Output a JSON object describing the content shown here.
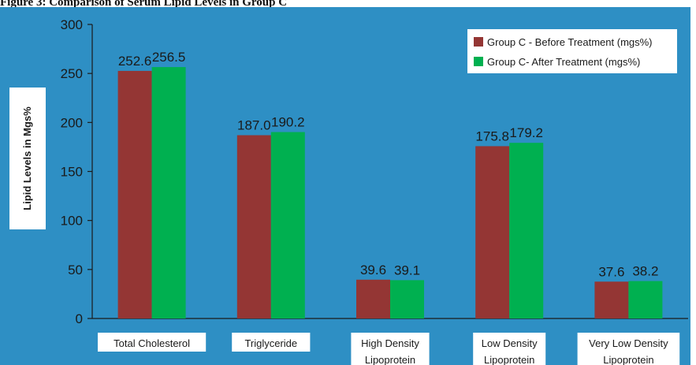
{
  "heading": "Figure 3: Comparison of Serum Lipid Levels in Group C",
  "colors": {
    "background": "#2e8fc4",
    "before": "#943634",
    "after": "#00b050",
    "ylabel_box": "#ffffff"
  },
  "chart_data": {
    "type": "bar",
    "categories": [
      [
        "Total Cholesterol"
      ],
      [
        "Triglyceride"
      ],
      [
        "High Density",
        "Lipoprotein"
      ],
      [
        "Low Density",
        "Lipoprotein"
      ],
      [
        "Very Low Density",
        "Lipoprotein"
      ]
    ],
    "series": [
      {
        "name": "Group C - Before Treatment (mgs%)",
        "values": [
          252.6,
          187.0,
          39.6,
          175.8,
          37.6
        ],
        "labels": [
          "252.6",
          "187.0",
          "39.6",
          "175.8",
          "37.6"
        ]
      },
      {
        "name": "Group C- After Treatment (mgs%)",
        "values": [
          256.5,
          190.2,
          39.1,
          179.2,
          38.2
        ],
        "labels": [
          "256.5",
          "190.2",
          "39.1",
          "179.2",
          "38.2"
        ]
      }
    ],
    "title": "",
    "xlabel": "",
    "ylabel": "Lipid Levels in Mgs%",
    "ylim": [
      0,
      300
    ],
    "yticks": [
      0,
      50,
      100,
      150,
      200,
      250,
      300
    ],
    "grid": false,
    "legend_position": "top-right"
  }
}
